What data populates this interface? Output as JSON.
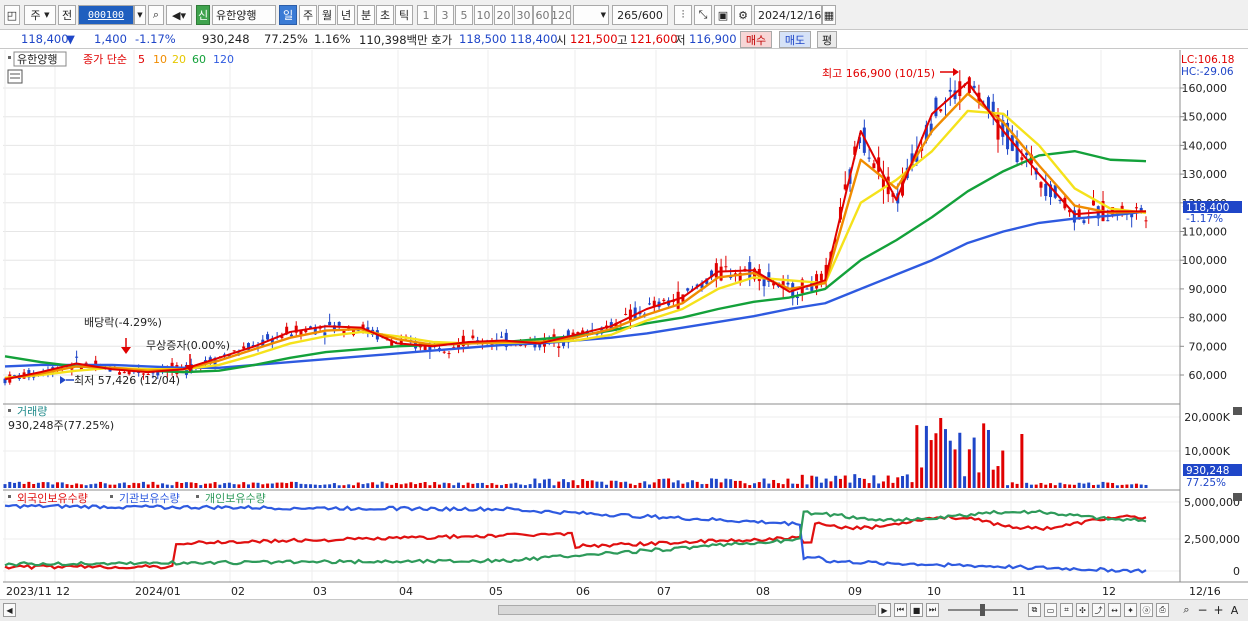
{
  "toolbar": {
    "stock_type": "주",
    "prev_label": "전",
    "code": "000100",
    "badge": "신",
    "stock_name": "유한양행",
    "periods": [
      "일",
      "주",
      "월",
      "년",
      "분",
      "초",
      "틱"
    ],
    "active_period": "일",
    "ranges": [
      "1",
      "3",
      "5",
      "10",
      "20",
      "30",
      "60",
      "120"
    ],
    "count": "265",
    "count_total": "/600",
    "date": "2024/12/16"
  },
  "quote": {
    "price": "118,400",
    "direction": "▼",
    "change": "1,400",
    "change_pct": "-1.17%",
    "volume": "930,248",
    "volume_ratio": "77.25%",
    "turnover": "1.16%",
    "amount": "110,398백만",
    "bid_label": "호가",
    "bid1": "118,500",
    "bid2": "118,400",
    "open_label": "시",
    "open": "121,500",
    "high_label": "고",
    "high": "121,600",
    "low_label": "저",
    "low": "116,900",
    "buy_label": "매수",
    "sell_label": "매도",
    "avg_label": "평"
  },
  "price_panel": {
    "stock_label": "유한양행",
    "indicator_label": "종가 단순",
    "ma_periods": [
      "5",
      "10",
      "20",
      "60",
      "120"
    ],
    "ma_colors": [
      "#e00000",
      "#f08c00",
      "#f5e21b",
      "#13a13a",
      "#2e5ae0"
    ],
    "lc": "LC:106.18",
    "hc": "HC:-29.06",
    "high_annot": "최고 166,900 (10/15)",
    "low_annot": "최저 57,426 (12/04)",
    "dividend_annot": "배당락(-4.29%)",
    "bonus_annot": "무상증자(0.00%)",
    "price_tag": "118,400",
    "price_tag_pct": "-1.17%",
    "y_ticks": [
      "160,000",
      "150,000",
      "140,000",
      "130,000",
      "120,000",
      "110,000",
      "100,000",
      "90,000",
      "80,000",
      "70,000",
      "60,000"
    ]
  },
  "volume_panel": {
    "title": "거래량",
    "value_label": "930,248주(77.25%)",
    "y_ticks": [
      "20,000K",
      "10,000K"
    ],
    "tag": "930,248",
    "tag_pct": "77.25%"
  },
  "holding_panel": {
    "series_labels": [
      "외국인보유수량",
      "기관보유수량",
      "개인보유수량"
    ],
    "series_colors": [
      "#e01010",
      "#2e5ae0",
      "#2e9a5a"
    ],
    "y_ticks": [
      "5,000,000",
      "2,500,000",
      "0"
    ]
  },
  "x_axis": {
    "labels": [
      "2023/11",
      "12",
      "2024/01",
      "02",
      "03",
      "04",
      "05",
      "06",
      "07",
      "08",
      "09",
      "10",
      "11",
      "12",
      "12/16"
    ]
  },
  "colors": {
    "up": "#e00000",
    "down": "#1f46c8",
    "accent": "#1f5fbf"
  },
  "chart_data": {
    "type": "candlestick",
    "title": "유한양행",
    "series": [
      {
        "name": "5",
        "values": [
          58500,
          61000,
          64000,
          62000,
          61000,
          62000,
          66000,
          70000,
          75000,
          77000,
          76500,
          71000,
          70000,
          71500,
          72000,
          71000,
          74000,
          77000,
          83000,
          87000,
          96000,
          96500,
          89000,
          93000,
          145000,
          121000,
          151000,
          162000,
          145000,
          130000,
          116000,
          117000,
          117000
        ]
      },
      {
        "name": "10",
        "values": [
          58700,
          60500,
          63000,
          62500,
          61500,
          62000,
          65000,
          69000,
          73000,
          75500,
          76000,
          72500,
          70500,
          71000,
          71500,
          71500,
          73000,
          76000,
          81000,
          85000,
          94000,
          95500,
          90000,
          92000,
          135000,
          125000,
          145000,
          158000,
          148000,
          133000,
          119000,
          116500,
          117000
        ]
      },
      {
        "name": "20",
        "values": [
          59000,
          60000,
          61500,
          62500,
          62000,
          62000,
          63500,
          67000,
          71000,
          73500,
          75000,
          73500,
          71500,
          71000,
          71200,
          71500,
          72000,
          74000,
          79000,
          83000,
          90000,
          94000,
          93000,
          92000,
          120000,
          128000,
          138000,
          152000,
          151000,
          140000,
          125000,
          118000,
          116500
        ]
      },
      {
        "name": "60",
        "values": [
          66500,
          64500,
          63000,
          62500,
          61500,
          61000,
          61500,
          63500,
          66000,
          68000,
          69000,
          70000,
          70500,
          71000,
          71500,
          72500,
          73500,
          75500,
          78000,
          80000,
          83000,
          85500,
          87000,
          90000,
          100000,
          107000,
          115000,
          124000,
          131000,
          136500,
          138000,
          135000,
          134500
        ]
      },
      {
        "name": "120",
        "values": [
          63000,
          63500,
          63500,
          63500,
          63000,
          62500,
          62500,
          63500,
          64500,
          65500,
          66500,
          67500,
          68500,
          69500,
          70500,
          71000,
          72000,
          73000,
          74500,
          76500,
          78500,
          80500,
          83000,
          85000,
          90000,
          95000,
          100000,
          106000,
          110000,
          113000,
          114500,
          115500,
          117000
        ]
      }
    ],
    "ylim": [
      55000,
      168000
    ]
  }
}
